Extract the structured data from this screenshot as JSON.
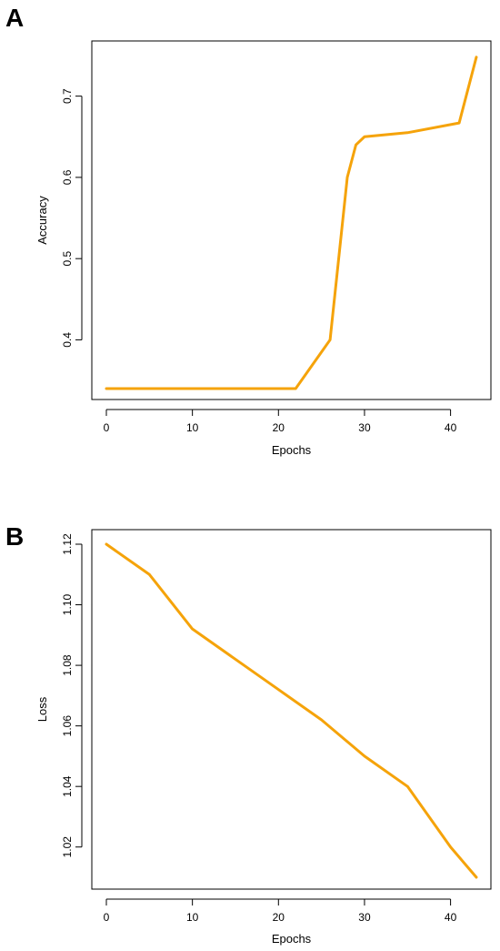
{
  "chart_data": [
    {
      "panel_label": "A",
      "type": "line",
      "xlabel": "Epochs",
      "ylabel": "Accuracy",
      "xlim": [
        0,
        43
      ],
      "ylim": [
        0.34,
        0.75
      ],
      "xticks": [
        0,
        10,
        20,
        30,
        40
      ],
      "yticks": [
        0.4,
        0.5,
        0.6,
        0.7
      ],
      "ytick_labels": [
        "0.4",
        "0.5",
        "0.6",
        "0.7"
      ],
      "grid": false,
      "color": "#f5a30a",
      "series": [
        {
          "x": [
            0,
            5,
            10,
            15,
            20,
            22,
            26,
            28,
            29,
            30,
            35,
            41,
            43
          ],
          "y": [
            0.34,
            0.34,
            0.34,
            0.34,
            0.34,
            0.34,
            0.4,
            0.6,
            0.64,
            0.65,
            0.655,
            0.667,
            0.748
          ]
        }
      ]
    },
    {
      "panel_label": "B",
      "type": "line",
      "xlabel": "Epochs",
      "ylabel": "Loss",
      "xlim": [
        0,
        43
      ],
      "ylim": [
        1.01,
        1.12
      ],
      "xticks": [
        0,
        10,
        20,
        30,
        40
      ],
      "yticks": [
        1.02,
        1.04,
        1.06,
        1.08,
        1.1,
        1.12
      ],
      "ytick_labels": [
        "1.02",
        "1.04",
        "1.06",
        "1.08",
        "1.10",
        "1.12"
      ],
      "grid": false,
      "color": "#f5a30a",
      "series": [
        {
          "x": [
            0,
            5,
            10,
            15,
            20,
            25,
            30,
            35,
            40,
            43
          ],
          "y": [
            1.12,
            1.11,
            1.092,
            1.082,
            1.072,
            1.062,
            1.05,
            1.04,
            1.02,
            1.01
          ]
        }
      ]
    }
  ]
}
